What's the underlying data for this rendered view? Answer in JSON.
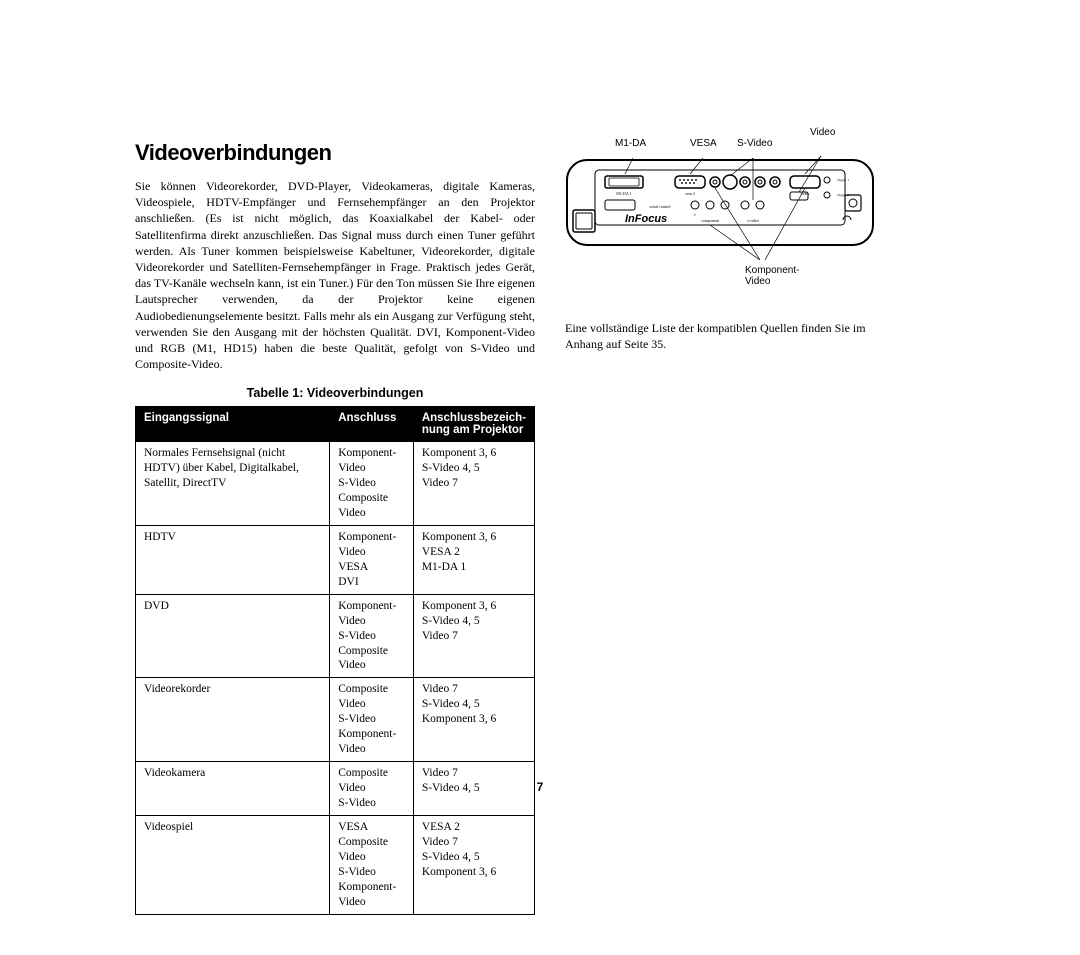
{
  "heading": "Videoverbindungen",
  "intro": "Sie können Videorekorder, DVD-Player, Videokameras, digitale Kameras, Videospiele, HDTV-Empfänger und Fernsehempfänger an den Projektor anschließen. (Es ist nicht möglich, das Koaxialkabel der Kabel- oder Satellitenfirma direkt anzuschließen. Das Signal muss durch einen Tuner geführt werden. Als Tuner kommen beispielsweise Kabeltuner, Videorekorder, digitale Videorekorder und Satelliten-Fernsehempfänger in Frage. Praktisch jedes Gerät, das TV-Kanäle wechseln kann, ist ein Tuner.) Für den Ton müssen Sie Ihre eigenen Lautsprecher verwenden, da der Projektor keine eigenen Audiobedienungselemente besitzt. Falls mehr als ein Ausgang zur Verfügung steht, verwenden Sie den Ausgang mit der höchsten Qualität. DVI, Komponent-Video und RGB (M1, HD15) haben die beste Qualität, gefolgt von S-Video und Composite-Video.",
  "table_caption": "Tabelle 1: Videoverbindungen",
  "table": {
    "columns": [
      "Eingangssignal",
      "Anschluss",
      "Anschlussbezeichnung am Projektor"
    ],
    "col_header_lines": [
      [
        "Eingangssignal"
      ],
      [
        "Anschluss"
      ],
      [
        "Anschlussbezeich-",
        "nung am Projektor"
      ]
    ],
    "rows": [
      {
        "c0": "Normales Fernsehsignal (nicht HDTV) über Kabel, Digitalkabel, Satellit, DirectTV",
        "c1": "Komponent-Video\nS-Video\nComposite Video",
        "c2": "Komponent 3, 6\nS-Video 4, 5\nVideo 7"
      },
      {
        "c0": "HDTV",
        "c1": "Komponent-Video\nVESA\nDVI",
        "c2": "Komponent 3, 6\nVESA 2\nM1-DA 1"
      },
      {
        "c0": "DVD",
        "c1": "Komponent-Video\nS-Video\nComposite Video",
        "c2": "Komponent 3, 6\nS-Video 4, 5\nVideo 7"
      },
      {
        "c0": "Videorekorder",
        "c1": "Composite Video\nS-Video\nKomponent-Video",
        "c2": "Video 7\nS-Video 4, 5\nKomponent 3, 6"
      },
      {
        "c0": "Videokamera",
        "c1": "Composite Video\nS-Video",
        "c2": "Video 7\nS-Video 4, 5"
      },
      {
        "c0": "Videospiel",
        "c1": "VESA\nComposite Video\nS-Video\nKomponent-Video",
        "c2": "VESA 2\nVideo 7\nS-Video 4, 5\nKomponent 3, 6"
      }
    ]
  },
  "diagram": {
    "labels": {
      "m1da": "M1-DA",
      "vesa": "VESA",
      "svideo": "S-Video",
      "video": "Video",
      "komponent": "Komponent-\nVideo"
    },
    "brand": "InFocus",
    "port_texts": {
      "m1da": "M1-DA 1",
      "vesa": "vesa 2",
      "video": "video",
      "serial": "serial control",
      "component": "component",
      "svideo": "s-video",
      "trig1": "trigger 1",
      "trig2": "trigger 2"
    }
  },
  "after_diagram": "Eine vollständige Liste der kompatiblen Quellen finden Sie im Anhang auf Seite 35.",
  "page_number": "7",
  "colors": {
    "bg": "#ffffff",
    "text": "#000000",
    "th_bg": "#000000",
    "th_fg": "#ffffff",
    "border": "#000000"
  }
}
